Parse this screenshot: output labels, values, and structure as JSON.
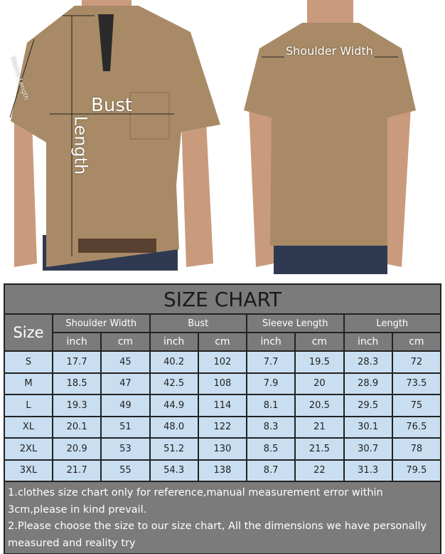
{
  "photo_labels": {
    "sleeve_length": "Sleeve Length",
    "bust": "Bust",
    "length": "Length",
    "shoulder_width": "Shoulder Width"
  },
  "colors": {
    "shirt": "#a88b66",
    "header": "#7b7b7b",
    "row": "#c9def0"
  },
  "table": {
    "title": "SIZE CHART",
    "size_header": "Size",
    "groups": [
      "Shoulder Width",
      "Bust",
      "Sleeve Length",
      "Length"
    ],
    "units": [
      "inch",
      "cm",
      "inch",
      "cm",
      "inch",
      "cm",
      "inch",
      "cm"
    ],
    "rows": [
      [
        "S",
        "17.7",
        "45",
        "40.2",
        "102",
        "7.7",
        "19.5",
        "28.3",
        "72"
      ],
      [
        "M",
        "18.5",
        "47",
        "42.5",
        "108",
        "7.9",
        "20",
        "28.9",
        "73.5"
      ],
      [
        "L",
        "19.3",
        "49",
        "44.9",
        "114",
        "8.1",
        "20.5",
        "29.5",
        "75"
      ],
      [
        "XL",
        "20.1",
        "51",
        "48.0",
        "122",
        "8.3",
        "21",
        "30.1",
        "76.5"
      ],
      [
        "2XL",
        "20.9",
        "53",
        "51.2",
        "130",
        "8.5",
        "21.5",
        "30.7",
        "78"
      ],
      [
        "3XL",
        "21.7",
        "55",
        "54.3",
        "138",
        "8.7",
        "22",
        "31.3",
        "79.5"
      ]
    ],
    "notes": [
      "1.clothes size chart only for reference,manual measurement error within 3cm,please in kind prevail.",
      "2.Please choose the size to our size chart, All the dimensions we have personally measured and reality try"
    ]
  }
}
